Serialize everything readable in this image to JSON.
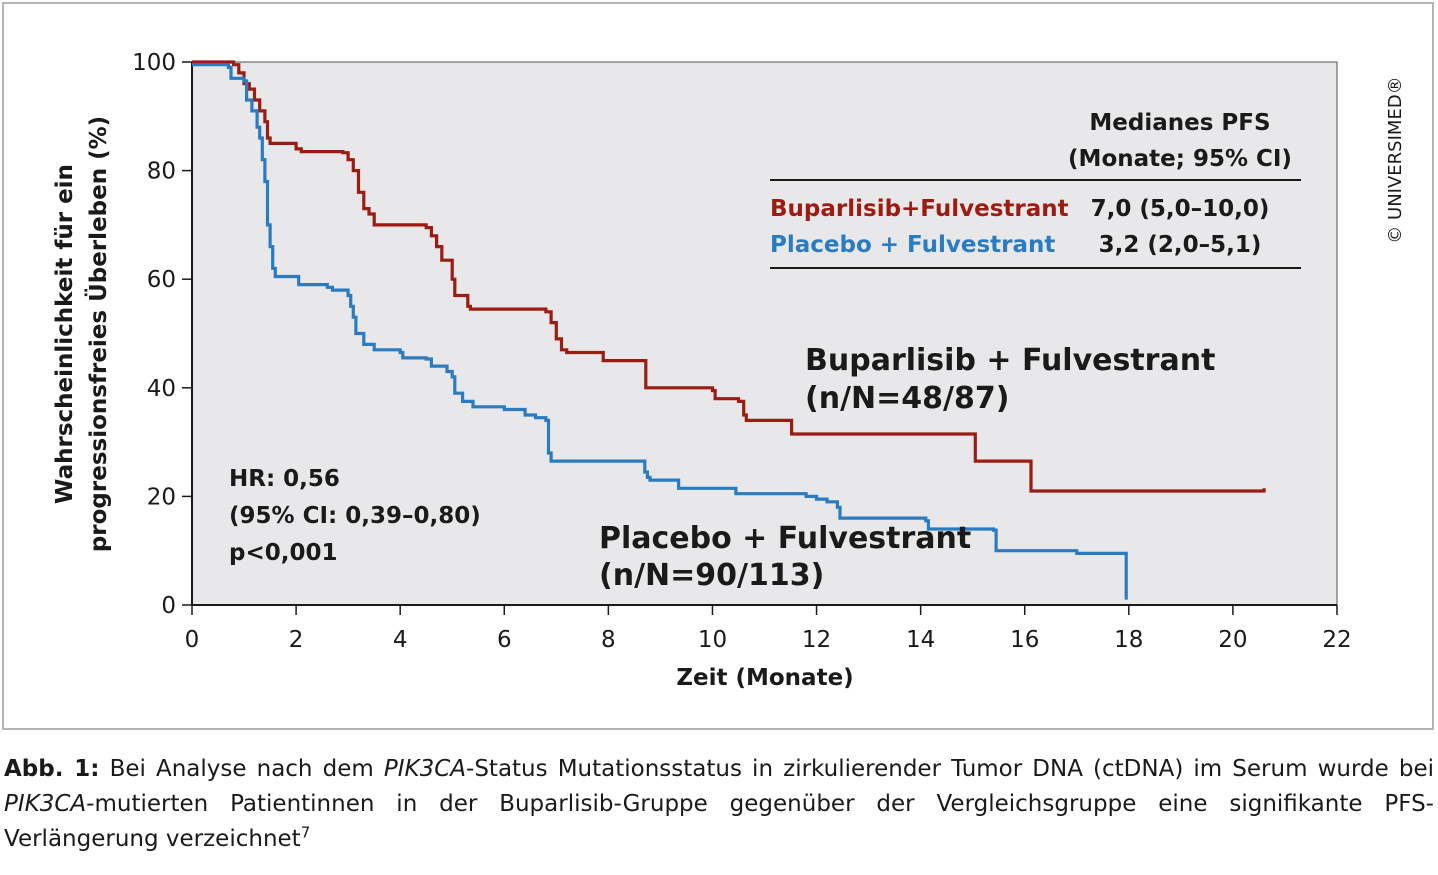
{
  "chart_data": {
    "type": "line",
    "xlabel": "Zeit (Monate)",
    "ylabel_line1": "Wahrscheinlichkeit für ein",
    "ylabel_line2": "progressionsfreies Überleben (%)",
    "xlim": [
      0,
      22
    ],
    "ylim": [
      0,
      100
    ],
    "x_ticks": [
      0,
      2,
      4,
      6,
      8,
      10,
      12,
      14,
      16,
      18,
      20,
      22
    ],
    "y_ticks": [
      0,
      20,
      40,
      60,
      80,
      100
    ],
    "grid": false,
    "series": [
      {
        "name": "Buparlisib + Fulvestrant",
        "n_label": "(n/N=48/87)",
        "color": "#9a1c12",
        "points": [
          [
            0,
            100
          ],
          [
            0.8,
            99.5
          ],
          [
            0.9,
            98
          ],
          [
            1.0,
            96
          ],
          [
            1.1,
            95
          ],
          [
            1.2,
            93
          ],
          [
            1.3,
            91
          ],
          [
            1.4,
            89
          ],
          [
            1.45,
            86
          ],
          [
            1.5,
            85
          ],
          [
            2.0,
            84
          ],
          [
            2.1,
            83.5
          ],
          [
            2.9,
            83.3
          ],
          [
            3.0,
            82
          ],
          [
            3.1,
            80
          ],
          [
            3.2,
            76
          ],
          [
            3.3,
            73
          ],
          [
            3.4,
            72
          ],
          [
            3.5,
            70
          ],
          [
            4.5,
            69.5
          ],
          [
            4.6,
            68
          ],
          [
            4.7,
            66
          ],
          [
            4.8,
            63.5
          ],
          [
            5.0,
            60
          ],
          [
            5.05,
            57
          ],
          [
            5.3,
            55
          ],
          [
            5.35,
            54.5
          ],
          [
            6.8,
            54
          ],
          [
            6.9,
            52
          ],
          [
            7.0,
            49
          ],
          [
            7.1,
            47
          ],
          [
            7.2,
            46.5
          ],
          [
            7.8,
            46.5
          ],
          [
            7.9,
            45
          ],
          [
            8.7,
            45
          ],
          [
            8.72,
            40
          ],
          [
            10.0,
            39.5
          ],
          [
            10.05,
            38
          ],
          [
            10.5,
            37.5
          ],
          [
            10.6,
            35
          ],
          [
            10.65,
            34
          ],
          [
            11.5,
            34
          ],
          [
            11.52,
            31.5
          ],
          [
            15.0,
            31.5
          ],
          [
            15.05,
            26.5
          ],
          [
            16.1,
            26.5
          ],
          [
            16.12,
            21
          ],
          [
            20.6,
            21.5
          ]
        ]
      },
      {
        "name": "Placebo + Fulvestrant",
        "n_label": "(n/N=90/113)",
        "color": "#2a7bc0",
        "points": [
          [
            0,
            99.5
          ],
          [
            0.7,
            99
          ],
          [
            0.75,
            97
          ],
          [
            1.0,
            96.5
          ],
          [
            1.05,
            93
          ],
          [
            1.15,
            91
          ],
          [
            1.25,
            88
          ],
          [
            1.3,
            86
          ],
          [
            1.35,
            82
          ],
          [
            1.4,
            78
          ],
          [
            1.45,
            70
          ],
          [
            1.5,
            66
          ],
          [
            1.55,
            62
          ],
          [
            1.6,
            60.5
          ],
          [
            2.0,
            60.5
          ],
          [
            2.05,
            59
          ],
          [
            2.6,
            58.5
          ],
          [
            2.7,
            58
          ],
          [
            3.0,
            57
          ],
          [
            3.05,
            55
          ],
          [
            3.1,
            53
          ],
          [
            3.15,
            50
          ],
          [
            3.3,
            48
          ],
          [
            3.5,
            47
          ],
          [
            4.0,
            46.5
          ],
          [
            4.05,
            45.5
          ],
          [
            4.5,
            45.3
          ],
          [
            4.6,
            44
          ],
          [
            4.9,
            43
          ],
          [
            5.0,
            42
          ],
          [
            5.05,
            39
          ],
          [
            5.2,
            37.5
          ],
          [
            5.4,
            36.5
          ],
          [
            6.0,
            36
          ],
          [
            6.4,
            35
          ],
          [
            6.6,
            34.5
          ],
          [
            6.8,
            34
          ],
          [
            6.85,
            28
          ],
          [
            6.9,
            26.5
          ],
          [
            8.6,
            26.5
          ],
          [
            8.7,
            24.5
          ],
          [
            8.75,
            23.5
          ],
          [
            8.8,
            23
          ],
          [
            9.3,
            23
          ],
          [
            9.35,
            21.5
          ],
          [
            10.4,
            21.5
          ],
          [
            10.45,
            20.5
          ],
          [
            11.3,
            20.5
          ],
          [
            11.8,
            20
          ],
          [
            12.0,
            19.5
          ],
          [
            12.2,
            19
          ],
          [
            12.4,
            18
          ],
          [
            12.45,
            16
          ],
          [
            13.8,
            16
          ],
          [
            14.1,
            15.5
          ],
          [
            14.15,
            14
          ],
          [
            15.4,
            13.8
          ],
          [
            15.45,
            10
          ],
          [
            17.0,
            9.5
          ],
          [
            17.95,
            9.5
          ],
          [
            17.95,
            1
          ]
        ]
      }
    ],
    "table": {
      "header_line1": "Medianes PFS",
      "header_line2": "(Monate; 95% CI)",
      "rows": [
        {
          "label": "Buparlisib+Fulvestrant",
          "value": "7,0 (5,0–10,0)",
          "color": "#9a1c12"
        },
        {
          "label": "Placebo + Fulvestrant",
          "value": "3,2 (2,0–5,1)",
          "color": "#2a7bc0"
        }
      ]
    },
    "annotation": {
      "line1": "HR: 0,56",
      "line2": "(95% CI: 0,39–0,80)",
      "line3": "p<0,001"
    },
    "copyright": "© UNIVERSIMED®",
    "plot_background": "#e8e8ea"
  },
  "caption": {
    "label": "Abb. 1:",
    "part1": " Bei Analyse nach dem ",
    "gene1": "PIK3CA",
    "part2": "-Status Mutationsstatus in zirkulierender Tumor DNA (ctDNA) im Serum wurde bei ",
    "gene2": "PIK3CA",
    "part3": "-mutierten Patientinnen in der Buparlisib-Gruppe gegenüber der Vergleichsgruppe eine signifikante PFS-Verlängerung verzeichnet",
    "ref": "7"
  }
}
